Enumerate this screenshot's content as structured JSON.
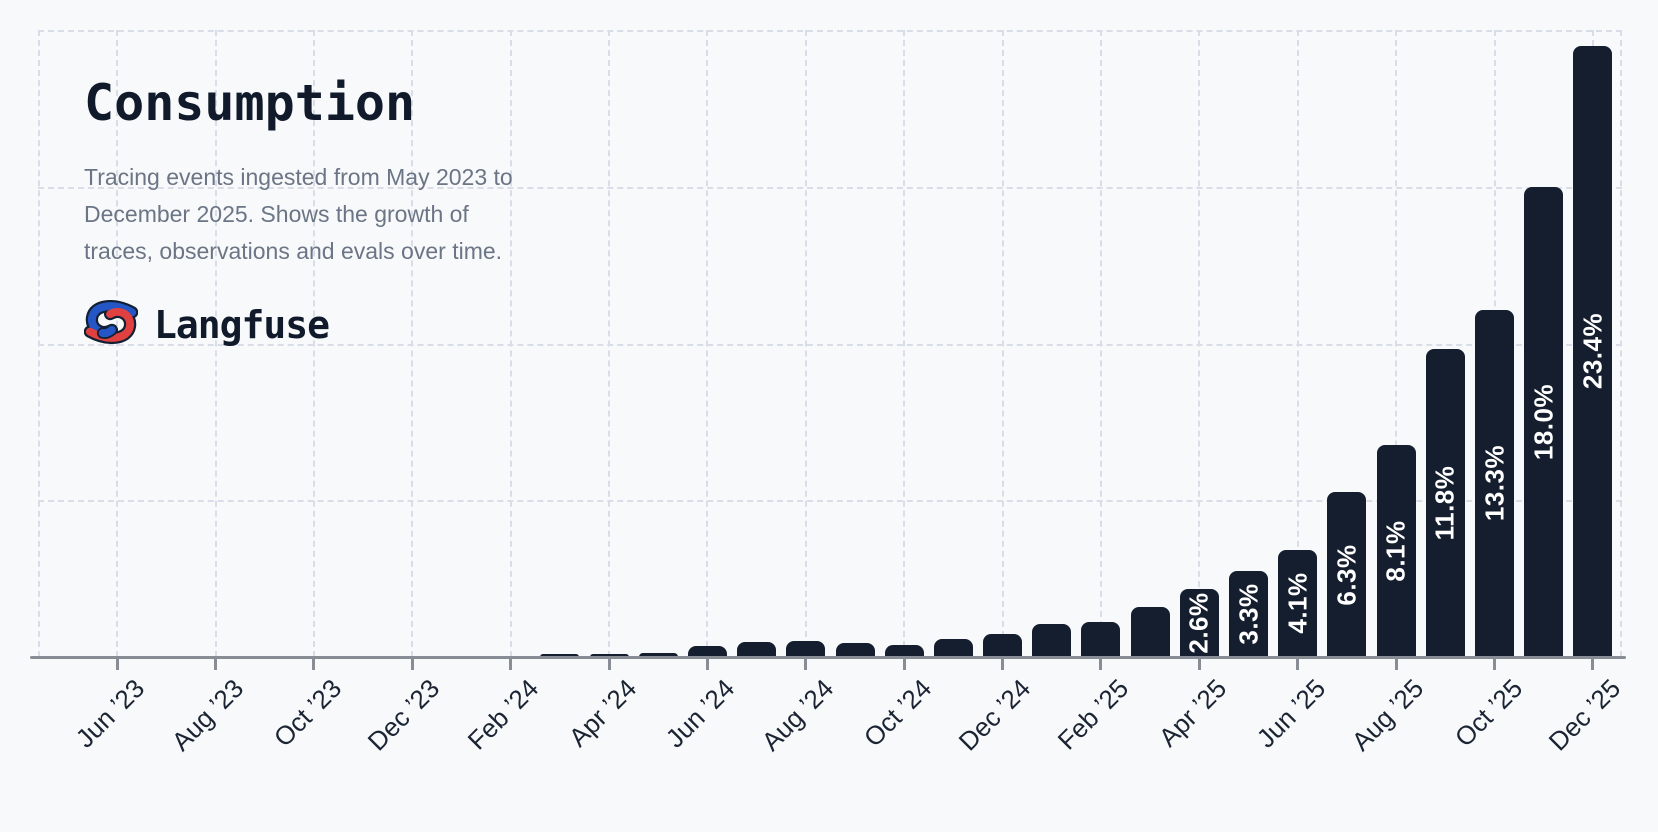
{
  "header": {
    "title": "Consumption",
    "subtitle_lines": [
      "Tracing events ingested from May 2023 to",
      "December 2025. Shows the growth of",
      "traces, observations and evals over time."
    ],
    "brand": {
      "name": "Langfuse",
      "icon": "knot-icon"
    }
  },
  "colors": {
    "background": "#f8f9fb",
    "bar": "#151e2e",
    "title_text": "#101a2b",
    "subtitle_text": "#6b7585",
    "axis_line": "#878c95",
    "gridline": "#d9dde7",
    "tick_label": "#1b2433",
    "bar_label_text": "#ffffff",
    "logo_red": "#e0403f",
    "logo_blue": "#2457c5"
  },
  "chart_data": {
    "type": "bar",
    "title": "Consumption",
    "xlabel": "",
    "ylabel": "",
    "unit": "%",
    "ylim": [
      0,
      24
    ],
    "y_gridline_step": 6,
    "grid": "dashed",
    "legend_position": "none",
    "categories": [
      "May ’23",
      "Jun ’23",
      "Jul ’23",
      "Aug ’23",
      "Sep ’23",
      "Oct ’23",
      "Nov ’23",
      "Dec ’23",
      "Jan ’24",
      "Feb ’24",
      "Mar ’24",
      "Apr ’24",
      "May ’24",
      "Jun ’24",
      "Jul ’24",
      "Aug ’24",
      "Sep ’24",
      "Oct ’24",
      "Nov ’24",
      "Dec ’24",
      "Jan ’25",
      "Feb ’25",
      "Mar ’25",
      "Apr ’25",
      "May ’25",
      "Jun ’25",
      "Jul ’25",
      "Aug ’25",
      "Sep ’25",
      "Oct ’25",
      "Nov ’25",
      "Dec ’25"
    ],
    "values": [
      0.01,
      0.01,
      0.02,
      0.02,
      0.02,
      0.03,
      0.03,
      0.03,
      0.04,
      0.05,
      0.1,
      0.12,
      0.17,
      0.42,
      0.57,
      0.61,
      0.54,
      0.46,
      0.68,
      0.88,
      1.25,
      1.35,
      1.9,
      2.6,
      3.3,
      4.1,
      6.3,
      8.1,
      11.8,
      13.3,
      18.0,
      23.4
    ],
    "bar_value_labels": [
      null,
      null,
      null,
      null,
      null,
      null,
      null,
      null,
      null,
      null,
      null,
      null,
      null,
      null,
      null,
      null,
      null,
      null,
      null,
      null,
      null,
      null,
      null,
      "2.6%",
      "3.3%",
      "4.1%",
      "6.3%",
      "8.1%",
      "11.8%",
      "13.3%",
      "18.0%",
      "23.4%"
    ],
    "x_tick_labels": [
      "Jun ’23",
      "Aug ’23",
      "Oct ’23",
      "Dec ’23",
      "Feb ’24",
      "Apr ’24",
      "Jun ’24",
      "Aug ’24",
      "Oct ’24",
      "Dec ’24",
      "Feb ’25",
      "Apr ’25",
      "Jun ’25",
      "Aug ’25",
      "Oct ’25",
      "Dec ’25"
    ]
  }
}
